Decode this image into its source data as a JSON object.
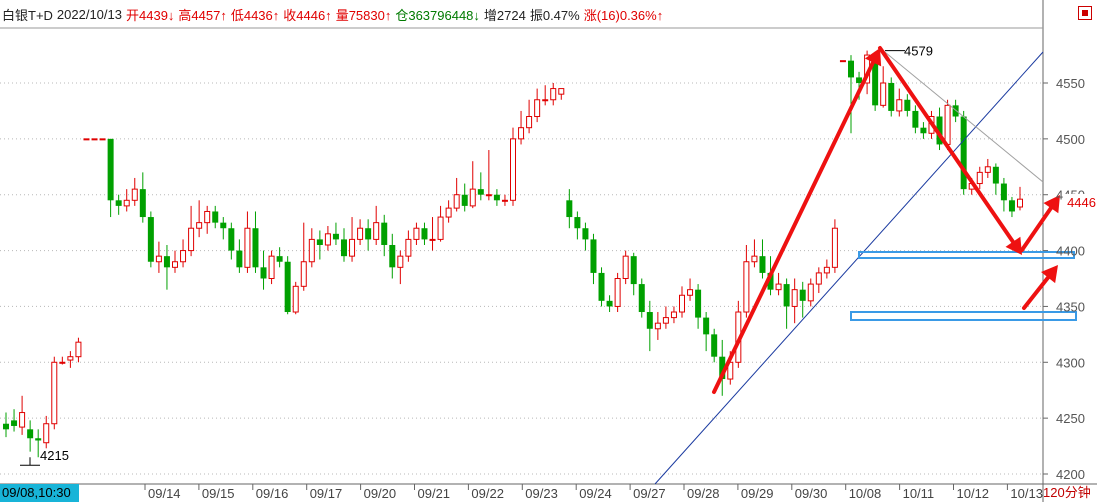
{
  "header": {
    "symbol": "白银T+D",
    "date": "2022/10/13",
    "open": "开4439↓",
    "high": "高4457↑",
    "low": "低4436↑",
    "close": "收4446↑",
    "volume": "量75830↑",
    "position": "仓363796448↓",
    "increase": "增2724",
    "amplitude": "振0.47%",
    "change": "涨(16)0.36%↑"
  },
  "footer": {
    "time_start": "09/08,10:30",
    "period": "120分钟"
  },
  "price_tag": "4446",
  "colors": {
    "up": "#e00000",
    "down": "#00a000",
    "arrow": "#ee1111",
    "trend": "#1a3aa0",
    "box": "#3a9ae6",
    "accent": "#18b4d8"
  },
  "chart_data": {
    "type": "candlestick",
    "y_ticks": [
      4200,
      4250,
      4300,
      4350,
      4400,
      4450,
      4500,
      4550
    ],
    "ylim": [
      4198,
      4610
    ],
    "x_labels": [
      "09/14",
      "09/15",
      "09/16",
      "09/17",
      "09/20",
      "09/21",
      "09/22",
      "09/23",
      "09/24",
      "09/27",
      "09/28",
      "09/29",
      "09/30",
      "10/08",
      "10/11",
      "10/12",
      "10/13"
    ],
    "annotations": {
      "high_label": "4579",
      "low_label": "4215",
      "last_price": "4446"
    },
    "candles": [
      [
        4245,
        4240,
        4255,
        4233
      ],
      [
        4248,
        4243,
        4258,
        4238
      ],
      [
        4242,
        4255,
        4270,
        4235
      ],
      [
        4240,
        4232,
        4248,
        4220
      ],
      [
        4232,
        4230,
        4240,
        4215
      ],
      [
        4228,
        4245,
        4252,
        4223
      ],
      [
        4245,
        4300,
        4305,
        4240
      ],
      [
        4300,
        4300,
        4305,
        4298
      ],
      [
        4302,
        4305,
        4310,
        4295
      ],
      [
        4305,
        4318,
        4322,
        4300
      ],
      [
        4500,
        4500,
        4500,
        4500
      ],
      [
        4500,
        4500,
        4500,
        4500
      ],
      [
        4500,
        4500,
        4500,
        4500
      ],
      [
        4500,
        4445,
        4500,
        4430
      ],
      [
        4445,
        4440,
        4450,
        4432
      ],
      [
        4440,
        4445,
        4455,
        4435
      ],
      [
        4445,
        4455,
        4465,
        4440
      ],
      [
        4455,
        4430,
        4470,
        4425
      ],
      [
        4430,
        4390,
        4435,
        4385
      ],
      [
        4390,
        4395,
        4408,
        4380
      ],
      [
        4395,
        4385,
        4405,
        4365
      ],
      [
        4385,
        4390,
        4400,
        4380
      ],
      [
        4390,
        4400,
        4410,
        4385
      ],
      [
        4400,
        4420,
        4440,
        4395
      ],
      [
        4420,
        4425,
        4445,
        4412
      ],
      [
        4425,
        4435,
        4440,
        4415
      ],
      [
        4435,
        4425,
        4440,
        4420
      ],
      [
        4425,
        4420,
        4430,
        4410
      ],
      [
        4420,
        4400,
        4425,
        4392
      ],
      [
        4400,
        4385,
        4410,
        4380
      ],
      [
        4385,
        4420,
        4435,
        4380
      ],
      [
        4420,
        4385,
        4435,
        4380
      ],
      [
        4385,
        4375,
        4400,
        4365
      ],
      [
        4375,
        4395,
        4400,
        4370
      ],
      [
        4395,
        4390,
        4403,
        4385
      ],
      [
        4390,
        4345,
        4395,
        4343
      ],
      [
        4345,
        4368,
        4372,
        4343
      ],
      [
        4368,
        4390,
        4425,
        4364
      ],
      [
        4390,
        4410,
        4420,
        4385
      ],
      [
        4410,
        4405,
        4418,
        4392
      ],
      [
        4405,
        4415,
        4422,
        4400
      ],
      [
        4415,
        4410,
        4425,
        4405
      ],
      [
        4410,
        4395,
        4420,
        4390
      ],
      [
        4395,
        4410,
        4430,
        4390
      ],
      [
        4410,
        4420,
        4428,
        4405
      ],
      [
        4420,
        4410,
        4428,
        4400
      ],
      [
        4410,
        4425,
        4440,
        4405
      ],
      [
        4425,
        4405,
        4432,
        4395
      ],
      [
        4405,
        4385,
        4415,
        4375
      ],
      [
        4385,
        4395,
        4400,
        4370
      ],
      [
        4395,
        4410,
        4418,
        4390
      ],
      [
        4410,
        4420,
        4425,
        4405
      ],
      [
        4420,
        4410,
        4425,
        4405
      ],
      [
        4410,
        4410,
        4430,
        4400
      ],
      [
        4410,
        4430,
        4440,
        4408
      ],
      [
        4430,
        4438,
        4445,
        4425
      ],
      [
        4438,
        4450,
        4465,
        4435
      ],
      [
        4450,
        4440,
        4460,
        4435
      ],
      [
        4440,
        4455,
        4480,
        4438
      ],
      [
        4455,
        4450,
        4470,
        4445
      ],
      [
        4450,
        4450,
        4490,
        4445
      ],
      [
        4450,
        4445,
        4455,
        4440
      ],
      [
        4445,
        4445,
        4450,
        4440
      ],
      [
        4445,
        4500,
        4510,
        4440
      ],
      [
        4500,
        4510,
        4525,
        4495
      ],
      [
        4510,
        4520,
        4535,
        4505
      ],
      [
        4520,
        4535,
        4545,
        4515
      ],
      [
        4535,
        4535,
        4548,
        4530
      ],
      [
        4535,
        4545,
        4550,
        4530
      ],
      [
        4540,
        4545,
        4545,
        4535
      ],
      [
        4445,
        4430,
        4455,
        4420
      ],
      [
        4430,
        4420,
        4435,
        4410
      ],
      [
        4420,
        4410,
        4425,
        4400
      ],
      [
        4410,
        4380,
        4415,
        4370
      ],
      [
        4380,
        4355,
        4385,
        4350
      ],
      [
        4355,
        4350,
        4360,
        4345
      ],
      [
        4350,
        4375,
        4380,
        4345
      ],
      [
        4375,
        4395,
        4400,
        4370
      ],
      [
        4395,
        4370,
        4398,
        4360
      ],
      [
        4370,
        4345,
        4375,
        4340
      ],
      [
        4345,
        4330,
        4355,
        4310
      ],
      [
        4330,
        4335,
        4345,
        4320
      ],
      [
        4335,
        4340,
        4350,
        4330
      ],
      [
        4340,
        4345,
        4350,
        4335
      ],
      [
        4345,
        4360,
        4368,
        4340
      ],
      [
        4360,
        4365,
        4375,
        4355
      ],
      [
        4365,
        4340,
        4370,
        4330
      ],
      [
        4340,
        4325,
        4345,
        4310
      ],
      [
        4325,
        4305,
        4330,
        4300
      ],
      [
        4305,
        4285,
        4320,
        4270
      ],
      [
        4285,
        4300,
        4310,
        4280
      ],
      [
        4300,
        4345,
        4355,
        4295
      ],
      [
        4345,
        4390,
        4405,
        4340
      ],
      [
        4390,
        4395,
        4410,
        4385
      ],
      [
        4395,
        4380,
        4410,
        4375
      ],
      [
        4380,
        4365,
        4395,
        4360
      ],
      [
        4365,
        4370,
        4380,
        4360
      ],
      [
        4370,
        4350,
        4375,
        4330
      ],
      [
        4350,
        4365,
        4375,
        4335
      ],
      [
        4365,
        4355,
        4372,
        4340
      ],
      [
        4355,
        4370,
        4375,
        4350
      ],
      [
        4370,
        4380,
        4385,
        4362
      ],
      [
        4380,
        4385,
        4392,
        4375
      ],
      [
        4385,
        4420,
        4428,
        4380
      ],
      [
        4570,
        4570,
        4570,
        4570
      ],
      [
        4570,
        4555,
        4575,
        4505
      ],
      [
        4555,
        4550,
        4560,
        4535
      ],
      [
        4550,
        4575,
        4579,
        4540
      ],
      [
        4575,
        4530,
        4578,
        4525
      ],
      [
        4530,
        4550,
        4565,
        4528
      ],
      [
        4550,
        4525,
        4555,
        4520
      ],
      [
        4525,
        4535,
        4545,
        4520
      ],
      [
        4535,
        4525,
        4540,
        4520
      ],
      [
        4525,
        4510,
        4530,
        4505
      ],
      [
        4510,
        4505,
        4515,
        4500
      ],
      [
        4505,
        4520,
        4525,
        4500
      ],
      [
        4520,
        4495,
        4528,
        4490
      ],
      [
        4495,
        4530,
        4535,
        4490
      ],
      [
        4530,
        4520,
        4535,
        4515
      ],
      [
        4520,
        4455,
        4525,
        4450
      ],
      [
        4455,
        4460,
        4465,
        4450
      ],
      [
        4460,
        4470,
        4475,
        4455
      ],
      [
        4470,
        4475,
        4482,
        4465
      ],
      [
        4475,
        4460,
        4478,
        4450
      ],
      [
        4460,
        4445,
        4465,
        4435
      ],
      [
        4445,
        4435,
        4448,
        4430
      ],
      [
        4439,
        4446,
        4457,
        4436
      ]
    ]
  }
}
